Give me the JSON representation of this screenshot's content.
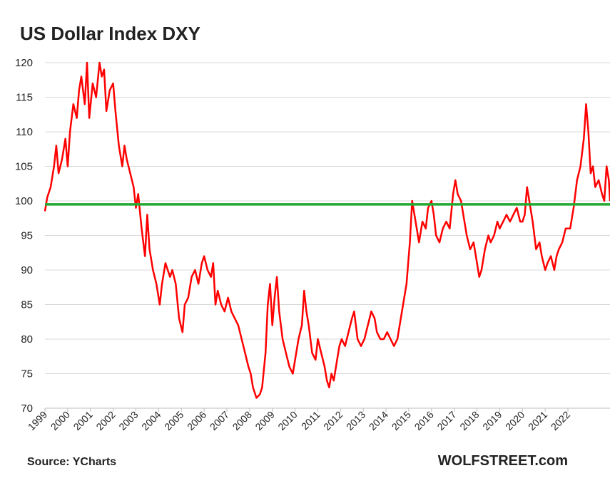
{
  "chart_data": {
    "type": "line",
    "title": "US Dollar Index DXY",
    "source": "Source: YCharts",
    "credit": "WOLFSTREET.com",
    "color": "#ff0000",
    "hline": {
      "value": 99.5,
      "color": "#22aa33"
    },
    "grid": true,
    "xlim": [
      1999,
      2023.85
    ],
    "xticks": [
      1999,
      2000,
      2001,
      2002,
      2003,
      2004,
      2005,
      2006,
      2007,
      2008,
      2009,
      2010,
      2011,
      2012,
      2013,
      2014,
      2015,
      2016,
      2017,
      2018,
      2019,
      2020,
      2021,
      2022
    ],
    "ylim": [
      70,
      120
    ],
    "yticks": [
      70,
      75,
      80,
      85,
      90,
      95,
      100,
      105,
      110,
      115,
      120
    ],
    "x": [
      1999.0,
      1999.1,
      1999.25,
      1999.4,
      1999.5,
      1999.6,
      1999.75,
      1999.9,
      2000.0,
      2000.1,
      2000.25,
      2000.4,
      2000.5,
      2000.6,
      2000.75,
      2000.85,
      2000.95,
      2001.1,
      2001.25,
      2001.4,
      2001.5,
      2001.6,
      2001.7,
      2001.85,
      2002.0,
      2002.1,
      2002.25,
      2002.4,
      2002.5,
      2002.6,
      2002.75,
      2002.9,
      2003.0,
      2003.1,
      2003.25,
      2003.4,
      2003.5,
      2003.6,
      2003.75,
      2003.9,
      2004.05,
      2004.15,
      2004.3,
      2004.5,
      2004.6,
      2004.75,
      2004.9,
      2005.05,
      2005.15,
      2005.3,
      2005.45,
      2005.6,
      2005.75,
      2005.9,
      2006.0,
      2006.15,
      2006.3,
      2006.4,
      2006.5,
      2006.6,
      2006.75,
      2006.9,
      2007.05,
      2007.2,
      2007.35,
      2007.5,
      2007.65,
      2007.8,
      2007.95,
      2008.05,
      2008.15,
      2008.3,
      2008.45,
      2008.55,
      2008.7,
      2008.8,
      2008.9,
      2009.0,
      2009.1,
      2009.2,
      2009.3,
      2009.45,
      2009.6,
      2009.75,
      2009.9,
      2010.0,
      2010.15,
      2010.3,
      2010.4,
      2010.5,
      2010.6,
      2010.75,
      2010.9,
      2011.0,
      2011.15,
      2011.3,
      2011.4,
      2011.5,
      2011.6,
      2011.7,
      2011.85,
      2011.95,
      2012.05,
      2012.2,
      2012.35,
      2012.5,
      2012.6,
      2012.75,
      2012.9,
      2013.05,
      2013.2,
      2013.35,
      2013.5,
      2013.6,
      2013.75,
      2013.9,
      2014.05,
      2014.2,
      2014.35,
      2014.5,
      2014.6,
      2014.75,
      2014.9,
      2015.0,
      2015.05,
      2015.15,
      2015.3,
      2015.45,
      2015.6,
      2015.75,
      2015.85,
      2016.0,
      2016.1,
      2016.2,
      2016.35,
      2016.5,
      2016.65,
      2016.8,
      2016.95,
      2017.05,
      2017.15,
      2017.3,
      2017.45,
      2017.55,
      2017.7,
      2017.85,
      2017.95,
      2018.1,
      2018.2,
      2018.35,
      2018.5,
      2018.6,
      2018.75,
      2018.9,
      2019.0,
      2019.15,
      2019.3,
      2019.45,
      2019.6,
      2019.75,
      2019.9,
      2020.0,
      2020.1,
      2020.2,
      2020.3,
      2020.45,
      2020.6,
      2020.75,
      2020.85,
      2021.0,
      2021.1,
      2021.25,
      2021.4,
      2021.5,
      2021.6,
      2021.75,
      2021.9,
      2022.0,
      2022.1,
      2022.25,
      2022.4,
      2022.55,
      2022.7,
      2022.8,
      2022.9,
      2023.0,
      2023.1,
      2023.2,
      2023.35,
      2023.5,
      2023.6,
      2023.7,
      2023.8,
      2023.85
    ],
    "values": [
      98.5,
      100.5,
      102,
      105,
      108,
      104,
      106,
      109,
      105,
      110,
      114,
      112,
      116,
      118,
      114,
      120,
      112,
      117,
      115,
      120,
      118,
      119,
      113,
      116,
      117,
      113,
      108,
      105,
      108,
      106,
      104,
      102,
      99,
      101,
      96,
      92,
      98,
      93,
      90,
      88,
      85,
      88,
      91,
      89,
      90,
      88,
      83,
      81,
      85,
      86,
      89,
      90,
      88,
      91,
      92,
      90,
      89,
      91,
      85,
      87,
      85,
      84,
      86,
      84,
      83,
      82,
      80,
      78,
      76,
      75,
      73,
      71.5,
      72,
      73,
      78,
      85,
      88,
      82,
      86,
      89,
      84,
      80,
      78,
      76,
      75,
      77,
      80,
      82,
      87,
      84,
      82,
      78,
      77,
      80,
      78,
      76,
      74,
      73,
      75,
      74,
      77,
      79,
      80,
      79,
      81,
      83,
      84,
      80,
      79,
      80,
      82,
      84,
      83,
      81,
      80,
      80,
      81,
      80,
      79,
      80,
      82,
      85,
      88,
      92,
      94,
      100,
      97,
      94,
      97,
      96,
      99,
      100,
      98,
      95,
      94,
      96,
      97,
      96,
      101,
      103,
      101,
      100,
      97,
      95,
      93,
      94,
      92,
      89,
      90,
      93,
      95,
      94,
      95,
      97,
      96,
      97,
      98,
      97,
      98,
      99,
      97,
      97,
      98,
      102,
      100,
      97,
      93,
      94,
      92,
      90,
      91,
      92,
      90,
      92,
      93,
      94,
      96,
      96,
      96,
      99,
      103,
      105,
      109,
      114,
      110,
      104,
      105,
      102,
      103,
      101,
      100,
      105,
      103,
      100
    ]
  }
}
